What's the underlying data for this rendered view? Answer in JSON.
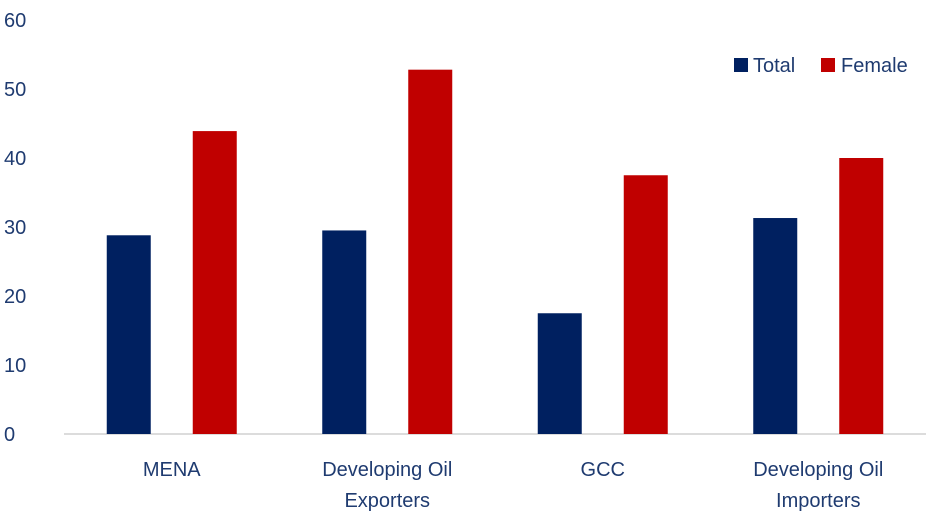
{
  "chart_data": {
    "type": "bar",
    "title": "",
    "xlabel": "",
    "ylabel": "",
    "categories": [
      [
        "MENA"
      ],
      [
        "Developing Oil",
        "Exporters"
      ],
      [
        "GCC"
      ],
      [
        "Developing Oil",
        "Importers"
      ]
    ],
    "series": [
      {
        "name": "Total",
        "color": "#002060",
        "values": [
          28.8,
          29.5,
          17.5,
          31.3
        ]
      },
      {
        "name": "Female",
        "color": "#c00000",
        "values": [
          43.9,
          52.8,
          37.5,
          40.0
        ]
      }
    ],
    "ylim": [
      0,
      60
    ],
    "yticks": [
      "0",
      "10",
      "20",
      "30",
      "40",
      "50",
      "60"
    ],
    "legend_position": "top-right",
    "grid": false
  }
}
